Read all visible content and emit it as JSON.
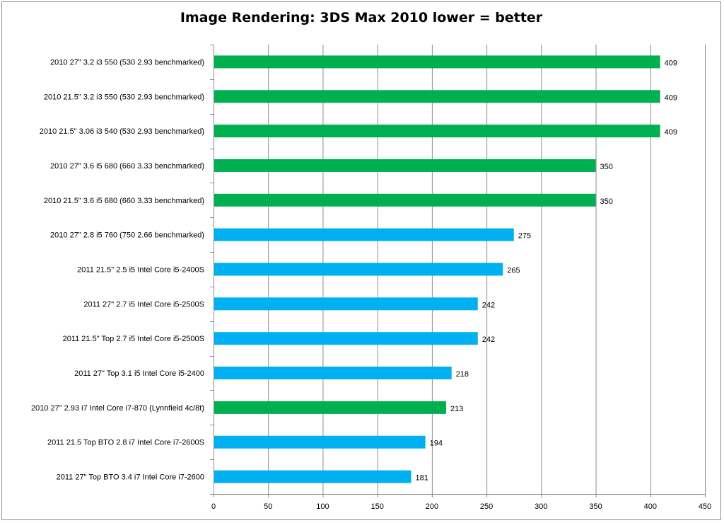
{
  "chart_data": {
    "type": "bar",
    "orientation": "horizontal",
    "title": "Image Rendering: 3DS Max 2010 lower = better",
    "xlabel": "",
    "ylabel": "",
    "xlim": [
      0,
      450
    ],
    "ticks": [
      0,
      50,
      100,
      150,
      200,
      250,
      300,
      350,
      400,
      450
    ],
    "grid": "vertical",
    "legend": "none",
    "colors": {
      "2010": "#00b050",
      "2011": "#00b0f0"
    },
    "bars": [
      {
        "category": "2010 27\" 3.2 i3 550 (530 2.93 benchmarked)",
        "value": 409,
        "group": "2010"
      },
      {
        "category": "2010 21.5\" 3.2 i3 550 (530 2.93 benchmarked)",
        "value": 409,
        "group": "2010"
      },
      {
        "category": "2010 21.5\" 3.06 i3 540 (530 2.93 benchmarked)",
        "value": 409,
        "group": "2010"
      },
      {
        "category": "2010 27\" 3.6 i5 680 (660 3.33 benchmarked)",
        "value": 350,
        "group": "2010"
      },
      {
        "category": "2010 21.5\" 3.6 i5 680 (660 3.33 benchmarked)",
        "value": 350,
        "group": "2010"
      },
      {
        "category": "2010 27\" 2.8 i5 760 (750 2.66 benchmarked)",
        "value": 275,
        "group": "2011"
      },
      {
        "category": "2011 21.5\" 2.5 i5 Intel Core i5-2400S",
        "value": 265,
        "group": "2011"
      },
      {
        "category": "2011 27\"  2.7 i5 Intel Core i5-2500S",
        "value": 242,
        "group": "2011"
      },
      {
        "category": "2011 21.5\" Top  2.7 i5 Intel Core i5-2500S",
        "value": 242,
        "group": "2011"
      },
      {
        "category": "2011 27\" Top 3.1 i5 Intel Core i5-2400",
        "value": 218,
        "group": "2011"
      },
      {
        "category": "2010 27\" 2.93 i7 Intel Core i7-870 (Lynnfield 4c/8t)",
        "value": 213,
        "group": "2010"
      },
      {
        "category": "2011 21.5 Top BTO  2.8 i7 Intel Core i7-2600S",
        "value": 194,
        "group": "2011"
      },
      {
        "category": "2011 27\" Top BTO  3.4 i7 Intel Core i7-2600",
        "value": 181,
        "group": "2011"
      }
    ]
  }
}
